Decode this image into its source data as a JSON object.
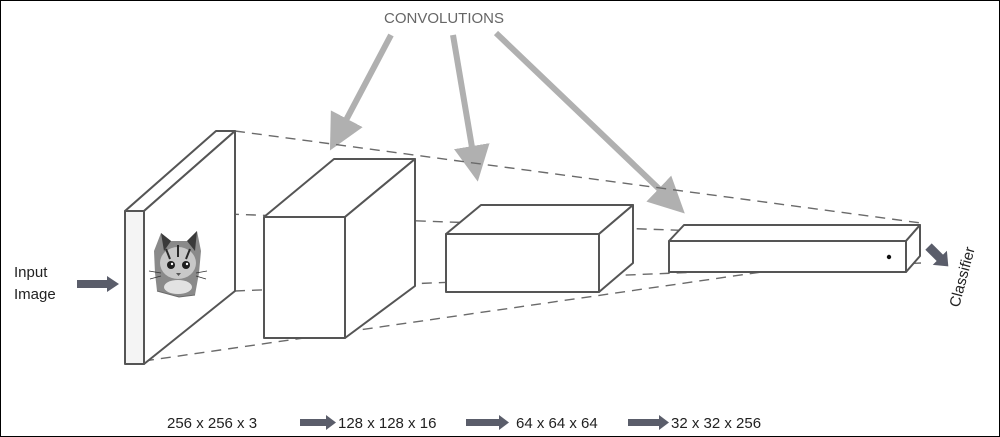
{
  "title": "CONVOLUTIONS",
  "input_label_line1": "Input",
  "input_label_line2": "Image",
  "classifier_label": "Classifier",
  "dimensions": [
    {
      "label": "256 x 256 x 3"
    },
    {
      "label": "128 x 128 x 16"
    },
    {
      "label": "64 x 64 x 64"
    },
    {
      "label": "32 x 32 x 256"
    }
  ],
  "colors": {
    "stroke": "#555555",
    "arrow_gray": "#b0b0b0",
    "arrow_dark": "#5a5d6a",
    "text": "#222222",
    "title_text": "#666666"
  }
}
